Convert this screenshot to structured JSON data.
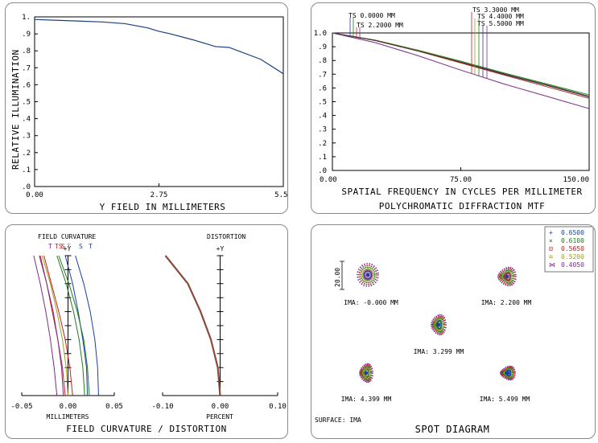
{
  "chart_data": [
    {
      "type": "line",
      "name": "relative-illumination",
      "xlabel": "Y FIELD IN MILLIMETERS",
      "ylabel": "RELATIVE ILLUMINATION",
      "xlim": [
        0,
        5.5
      ],
      "ylim": [
        0,
        1
      ],
      "x_tick_labels": [
        "0.00",
        "2.75",
        "5.50"
      ],
      "x_ticks": [
        0,
        2.75,
        5.5
      ],
      "y_tick_labels": [
        "1.",
        ".9",
        ".8",
        ".7",
        ".6",
        ".5",
        ".4",
        ".3",
        ".2",
        ".1",
        ".0"
      ],
      "grid": false,
      "x": [
        0,
        0.5,
        1.0,
        1.5,
        2.0,
        2.5,
        2.75,
        3.0,
        3.5,
        4.0,
        4.3,
        4.5,
        5.0,
        5.5
      ],
      "y": [
        0.985,
        0.98,
        0.975,
        0.97,
        0.96,
        0.935,
        0.915,
        0.9,
        0.865,
        0.825,
        0.82,
        0.8,
        0.75,
        0.665
      ]
    },
    {
      "type": "line",
      "name": "mtf",
      "title": "POLYCHROMATIC DIFFRACTION MTF",
      "xlabel": "SPATIAL FREQUENCY IN CYCLES PER MILLIMETER",
      "xlim": [
        0,
        150
      ],
      "ylim": [
        0,
        1
      ],
      "x_tick_labels": [
        "0.00",
        "75.00",
        "150.00"
      ],
      "x_ticks": [
        0,
        75,
        150
      ],
      "y_tick_labels": [
        "1.0",
        ".9",
        ".8",
        ".7",
        ".6",
        ".5",
        ".4",
        ".3",
        ".2",
        ".1",
        ".0"
      ],
      "grid": false,
      "field_labels": [
        "TS 0.0000 MM",
        "TS 2.2000 MM",
        "TS 3.3000 MM",
        "TS 4.4000 MM",
        "TS 5.5000 MM"
      ],
      "x": [
        0,
        25,
        50,
        75,
        100,
        125,
        150
      ],
      "series": [
        {
          "color": "#1a3fa0",
          "values": [
            1.0,
            0.945,
            0.87,
            0.785,
            0.7,
            0.62,
            0.535
          ]
        },
        {
          "color": "#207a20",
          "values": [
            1.0,
            0.948,
            0.875,
            0.795,
            0.71,
            0.63,
            0.55
          ]
        },
        {
          "color": "#c02020",
          "values": [
            1.0,
            0.945,
            0.868,
            0.782,
            0.695,
            0.61,
            0.525
          ]
        },
        {
          "color": "#a0a020",
          "values": [
            1.0,
            0.947,
            0.872,
            0.79,
            0.705,
            0.625,
            0.54
          ]
        },
        {
          "color": "#333333",
          "values": [
            1.0,
            0.946,
            0.87,
            0.788,
            0.703,
            0.622,
            0.538
          ]
        },
        {
          "color": "#7a2a8a",
          "values": [
            1.0,
            0.93,
            0.835,
            0.73,
            0.63,
            0.54,
            0.45
          ]
        }
      ]
    },
    {
      "type": "line",
      "name": "field-curvature",
      "title": "FIELD CURVATURE",
      "xlabel": "MILLIMETERS",
      "xlim": [
        -0.05,
        0.05
      ],
      "x_tick_labels": [
        "-0.05",
        "0.00",
        "0.05"
      ],
      "x_ticks": [
        -0.05,
        0,
        0.05
      ],
      "axis_label": "+Y",
      "curve_labels": [
        "T",
        "TS",
        "S",
        "T",
        "S",
        "T"
      ],
      "y_fraction": [
        0,
        0.2,
        0.4,
        0.6,
        0.8,
        1.0
      ],
      "series": [
        {
          "color": "#1a3fa0",
          "values": [
            0.033,
            0.032,
            0.029,
            0.024,
            0.017,
            0.008
          ]
        },
        {
          "color": "#1a3fa0",
          "values": [
            0.021,
            0.02,
            0.016,
            0.011,
            0.005,
            -0.003
          ]
        },
        {
          "color": "#207a20",
          "values": [
            0.023,
            0.021,
            0.017,
            0.01,
            0.001,
            -0.01
          ]
        },
        {
          "color": "#207a20",
          "values": [
            0.018,
            0.016,
            0.012,
            0.006,
            -0.002,
            -0.012
          ]
        },
        {
          "color": "#c02020",
          "values": [
            -0.003,
            -0.006,
            -0.011,
            -0.017,
            -0.023,
            -0.03
          ]
        },
        {
          "color": "#c02020",
          "values": [
            0.005,
            0.002,
            -0.003,
            -0.01,
            -0.018,
            -0.026
          ]
        },
        {
          "color": "#a0a020",
          "values": [
            0.0,
            -0.002,
            -0.006,
            -0.012,
            -0.019,
            -0.028
          ]
        },
        {
          "color": "#7a2a8a",
          "values": [
            -0.012,
            -0.015,
            -0.019,
            -0.024,
            -0.03,
            -0.037
          ]
        },
        {
          "color": "#7a2a8a",
          "values": [
            -0.005,
            -0.007,
            -0.011,
            -0.016,
            -0.023,
            -0.031
          ]
        }
      ]
    },
    {
      "type": "line",
      "name": "distortion",
      "title": "DISTORTION",
      "xlabel": "PERCENT",
      "xlim": [
        -0.1,
        0.1
      ],
      "x_tick_labels": [
        "-0.10",
        "0.00",
        "0.10"
      ],
      "x_ticks": [
        -0.1,
        0,
        0.1
      ],
      "axis_label": "+Y",
      "y_fraction": [
        0,
        0.2,
        0.4,
        0.6,
        0.8,
        1.0
      ],
      "values": [
        0.0,
        -0.004,
        -0.016,
        -0.034,
        -0.056,
        -0.095
      ]
    }
  ],
  "fc_title": "FIELD CURVATURE / DISTORTION",
  "spot": {
    "title": "SPOT DIAGRAM",
    "surface": "SURFACE: IMA",
    "scale": "20.00",
    "legend": [
      {
        "symbol": "+",
        "label": "0.6500",
        "color": "#1a3fa0"
      },
      {
        "symbol": "×",
        "label": "0.6100",
        "color": "#207a20"
      },
      {
        "symbol": "⊡",
        "label": "0.5650",
        "color": "#c02020"
      },
      {
        "symbol": "⌧",
        "label": "0.5200",
        "color": "#a0a020"
      },
      {
        "symbol": "⋈",
        "label": "0.4050",
        "color": "#7a2a8a"
      }
    ],
    "fields": [
      "IMA: -0.000 MM",
      "IMA: 2.200 MM",
      "IMA: 3.299 MM",
      "IMA: 4.399 MM",
      "IMA: 5.499 MM"
    ]
  }
}
